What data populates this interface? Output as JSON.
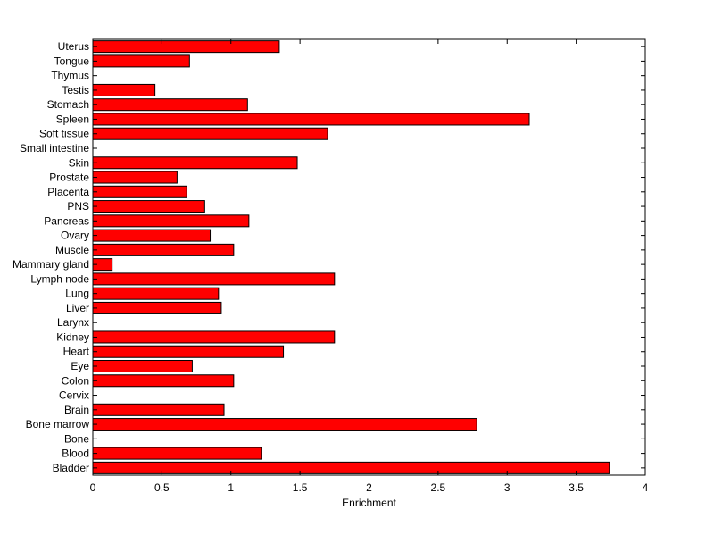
{
  "chart_data": {
    "type": "bar",
    "orientation": "horizontal",
    "title": "",
    "xlabel": "Enrichment",
    "ylabel": "",
    "xlim": [
      0,
      4
    ],
    "xticks": [
      "0",
      "0.5",
      "1",
      "1.5",
      "2",
      "2.5",
      "3",
      "3.5",
      "4"
    ],
    "grid": false,
    "bar_color": "#ff0000",
    "categories": [
      "Bladder",
      "Blood",
      "Bone",
      "Bone marrow",
      "Brain",
      "Cervix",
      "Colon",
      "Eye",
      "Heart",
      "Kidney",
      "Larynx",
      "Liver",
      "Lung",
      "Lymph node",
      "Mammary gland",
      "Muscle",
      "Ovary",
      "Pancreas",
      "PNS",
      "Placenta",
      "Prostate",
      "Skin",
      "Small intestine",
      "Soft tissue",
      "Spleen",
      "Stomach",
      "Testis",
      "Thymus",
      "Tongue",
      "Uterus"
    ],
    "values": [
      3.74,
      1.22,
      0,
      2.78,
      0.95,
      0,
      1.02,
      0.72,
      1.38,
      1.75,
      0,
      0.93,
      0.91,
      1.75,
      0.14,
      1.02,
      0.85,
      1.13,
      0.81,
      0.68,
      0.61,
      1.48,
      0,
      1.7,
      3.16,
      1.12,
      0.45,
      0,
      0.7,
      1.35
    ]
  }
}
